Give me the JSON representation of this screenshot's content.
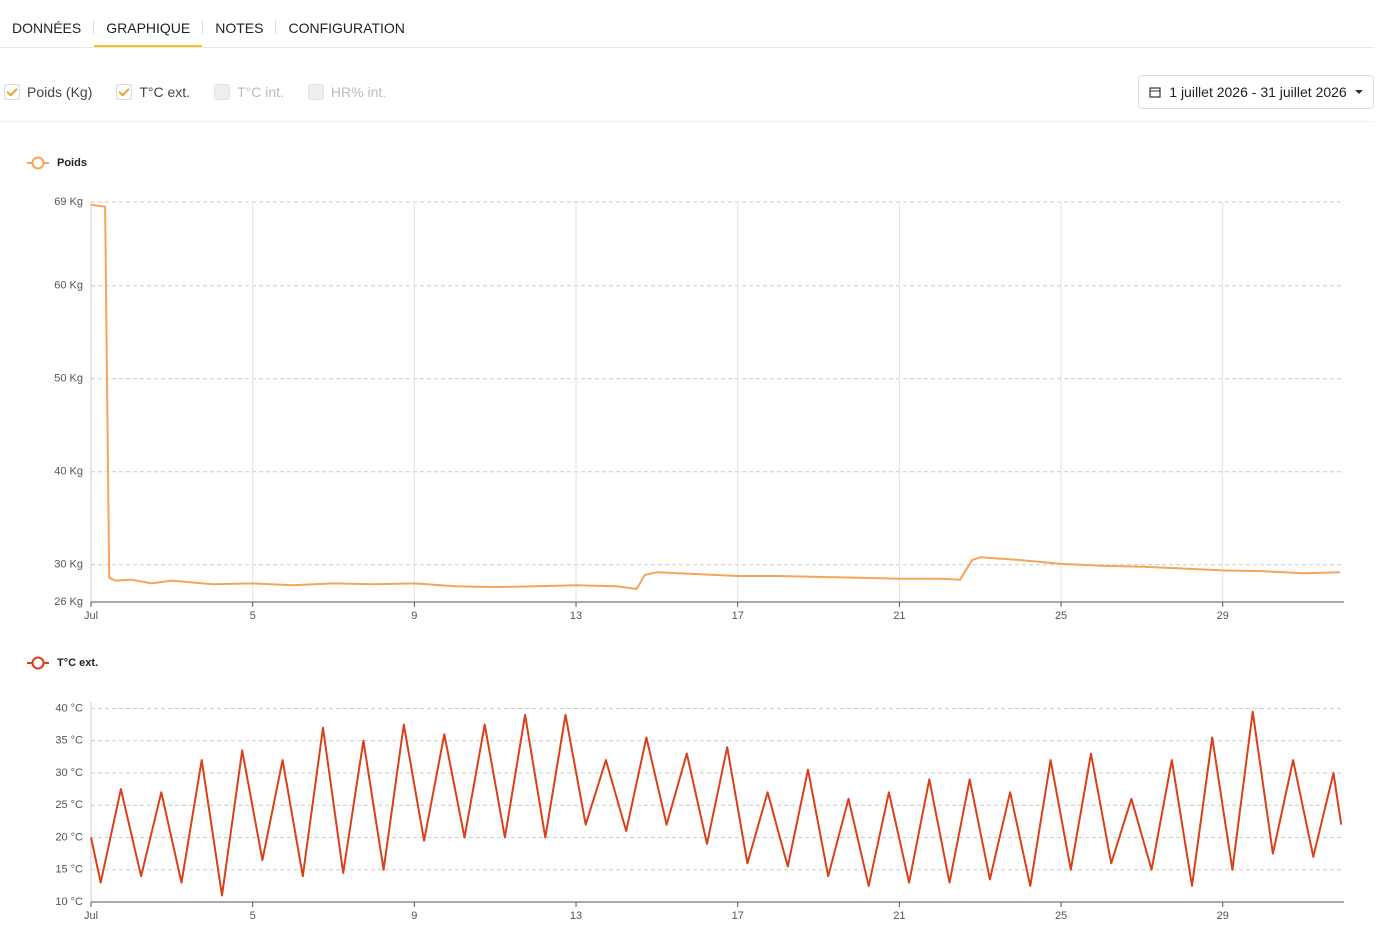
{
  "tabs": [
    {
      "label": "DONNÉES",
      "active": false
    },
    {
      "label": "GRAPHIQUE",
      "active": true
    },
    {
      "label": "NOTES",
      "active": false
    },
    {
      "label": "CONFIGURATION",
      "active": false
    }
  ],
  "filters": [
    {
      "label": "Poids (Kg)",
      "checked": true
    },
    {
      "label": "T°C ext.",
      "checked": true
    },
    {
      "label": "T°C int.",
      "checked": false
    },
    {
      "label": "HR% int.",
      "checked": false
    }
  ],
  "date_range": "1 juillet 2026 - 31 juillet 2026",
  "chart_data": [
    {
      "type": "line",
      "grid": {
        "x": true,
        "y": true
      },
      "xlim": [
        1,
        32
      ],
      "xticks": [
        {
          "value": 1,
          "label": "Jul"
        },
        5,
        9,
        13,
        17,
        21,
        25,
        29
      ],
      "ylim": [
        26,
        69
      ],
      "yticks": [
        {
          "value": 26,
          "label": "26 Kg"
        },
        {
          "value": 30,
          "label": "30 Kg"
        },
        {
          "value": 40,
          "label": "40 Kg"
        },
        {
          "value": 50,
          "label": "50 Kg"
        },
        {
          "value": 60,
          "label": "60 Kg"
        },
        {
          "value": 69,
          "label": "69 Kg"
        }
      ],
      "series": [
        {
          "name": "Poids",
          "color": "#f5a55a",
          "x": [
            1,
            1.35,
            1.45,
            1.6,
            2,
            2.5,
            3,
            4,
            5,
            6,
            7,
            8,
            9,
            10,
            11,
            12,
            13,
            14,
            14.5,
            14.7,
            15,
            16,
            17,
            18,
            19,
            20,
            21,
            22,
            22.5,
            22.8,
            23,
            24,
            25,
            26,
            27,
            28,
            29,
            30,
            31,
            31.9
          ],
          "values": [
            68.7,
            68.5,
            28.6,
            28.3,
            28.4,
            28.0,
            28.3,
            27.9,
            28.0,
            27.8,
            28.0,
            27.9,
            28.0,
            27.7,
            27.6,
            27.7,
            27.8,
            27.7,
            27.4,
            28.9,
            29.2,
            29.0,
            28.8,
            28.8,
            28.7,
            28.6,
            28.5,
            28.5,
            28.4,
            30.5,
            30.8,
            30.5,
            30.1,
            29.9,
            29.8,
            29.6,
            29.4,
            29.3,
            29.1,
            29.2
          ]
        }
      ]
    },
    {
      "type": "line",
      "grid": {
        "x": false,
        "y": true
      },
      "xlim": [
        1,
        32
      ],
      "xticks": [
        {
          "value": 1,
          "label": "Jul"
        },
        5,
        9,
        13,
        17,
        21,
        25,
        29
      ],
      "ylim": [
        10,
        41
      ],
      "yticks": [
        {
          "value": 10,
          "label": "10 °C"
        },
        {
          "value": 15,
          "label": "15 °C"
        },
        {
          "value": 20,
          "label": "20 °C"
        },
        {
          "value": 25,
          "label": "25 °C"
        },
        {
          "value": 30,
          "label": "30 °C"
        },
        {
          "value": 35,
          "label": "35 °C"
        },
        {
          "value": 40,
          "label": "40 °C"
        }
      ],
      "series": [
        {
          "name": "T°C ext.",
          "color": "#d9401a",
          "x": [
            1,
            1.24,
            1.74,
            2.24,
            2.74,
            3.24,
            3.74,
            4.24,
            4.74,
            5.24,
            5.74,
            6.24,
            6.74,
            7.24,
            7.74,
            8.24,
            8.74,
            9.24,
            9.74,
            10.24,
            10.74,
            11.24,
            11.74,
            12.24,
            12.74,
            13.24,
            13.74,
            14.24,
            14.74,
            15.24,
            15.74,
            16.24,
            16.74,
            17.24,
            17.74,
            18.24,
            18.74,
            19.24,
            19.74,
            20.24,
            20.74,
            21.24,
            21.74,
            22.24,
            22.74,
            23.24,
            23.74,
            24.24,
            24.74,
            25.24,
            25.74,
            26.24,
            26.74,
            27.24,
            27.74,
            28.24,
            28.74,
            29.24,
            29.74,
            30.24,
            30.74,
            31.24,
            31.74,
            31.93
          ],
          "values": [
            20,
            13,
            27.5,
            14,
            27,
            13,
            32,
            11,
            33.5,
            16.5,
            32,
            14,
            37,
            14.5,
            35,
            15,
            37.5,
            19.5,
            36,
            20,
            37.5,
            20,
            39,
            20,
            39,
            22,
            32,
            21,
            35.5,
            22,
            33,
            19,
            34,
            16,
            27,
            15.5,
            30.5,
            14,
            26,
            12.5,
            27,
            13,
            29,
            13,
            29,
            13.5,
            27,
            12.5,
            32,
            15,
            33,
            16,
            26,
            15,
            32,
            12.5,
            35.5,
            15,
            39.5,
            17.5,
            32,
            17,
            30,
            22
          ]
        }
      ]
    }
  ]
}
